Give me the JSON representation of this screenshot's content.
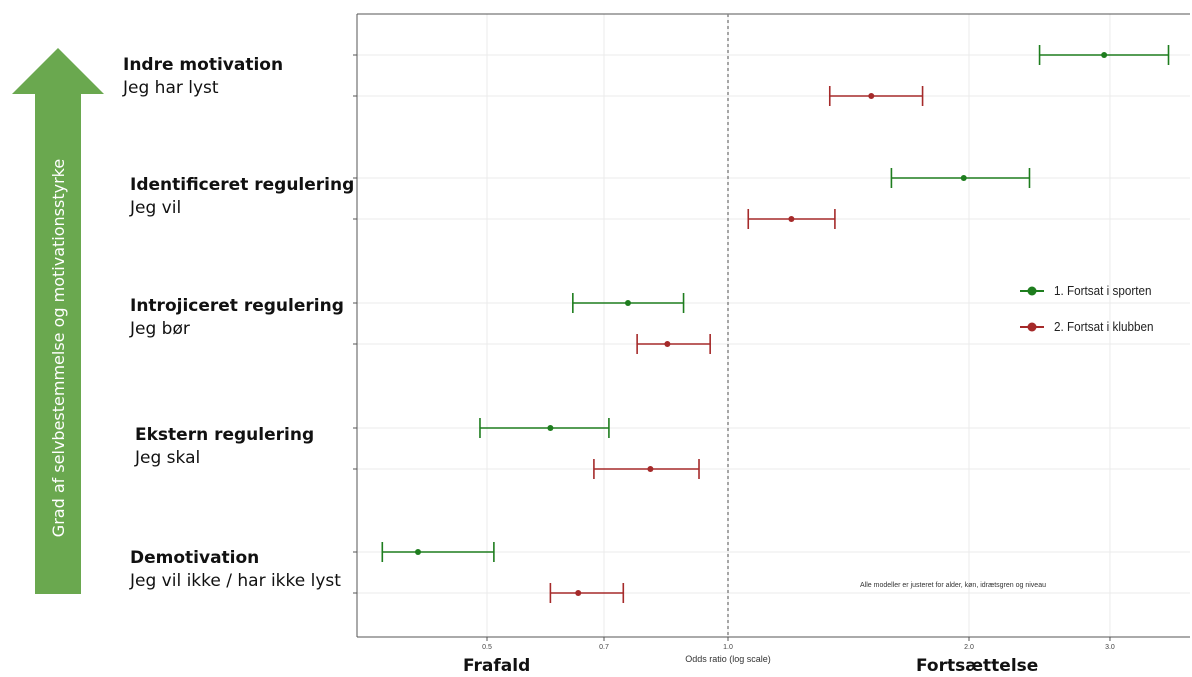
{
  "arrow": {
    "label": "Grad af selvbestemmelse og motivationsstyrke",
    "color": "#6aa84f"
  },
  "categories": [
    {
      "title": "Indre motivation",
      "subtitle": "Jeg har lyst"
    },
    {
      "title": "Identificeret regulering",
      "subtitle": "Jeg vil"
    },
    {
      "title": "Introjiceret regulering",
      "subtitle": "Jeg bør"
    },
    {
      "title": "Ekstern regulering",
      "subtitle": "Jeg skal"
    },
    {
      "title": "Demotivation",
      "subtitle": "Jeg vil ikke / har ikke lyst"
    }
  ],
  "legend": [
    {
      "label": "1. Fortsat i sporten",
      "color": "#1e7d1e"
    },
    {
      "label": "2. Fortsat i klubben",
      "color": "#a52a2a"
    }
  ],
  "note": "Alle modeller er justeret for alder, køn, idrætsgren og niveau",
  "bottom": {
    "left": "Frafald",
    "right": "Fortsættelse"
  },
  "chart_data": {
    "type": "scatter",
    "subtype": "forest-plot",
    "xlabel": "Odds ratio (log scale)",
    "x_scale": "log",
    "xlim": [
      0.34,
      4.1
    ],
    "xticks": [
      0.5,
      0.7,
      1.0,
      2.0,
      3.0
    ],
    "xtick_labels": [
      "0.5",
      "0.7",
      "1.0",
      "2.0",
      "3.0"
    ],
    "reference_line": 1.0,
    "grid": true,
    "legend_position": "right",
    "categories": [
      "Indre motivation",
      "Identificeret regulering",
      "Introjiceret regulering",
      "Ekstern regulering",
      "Demotivation"
    ],
    "series": [
      {
        "name": "1. Fortsat i sporten",
        "color": "#1e7d1e",
        "estimate": [
          2.95,
          1.97,
          0.75,
          0.6,
          0.41
        ],
        "lower": [
          2.45,
          1.6,
          0.64,
          0.49,
          0.37
        ],
        "upper": [
          3.55,
          2.38,
          0.88,
          0.71,
          0.51
        ]
      },
      {
        "name": "2. Fortsat i klubben",
        "color": "#a52a2a",
        "estimate": [
          1.51,
          1.2,
          0.84,
          0.8,
          0.65
        ],
        "lower": [
          1.34,
          1.06,
          0.77,
          0.68,
          0.6
        ],
        "upper": [
          1.75,
          1.36,
          0.95,
          0.92,
          0.74
        ]
      }
    ]
  }
}
